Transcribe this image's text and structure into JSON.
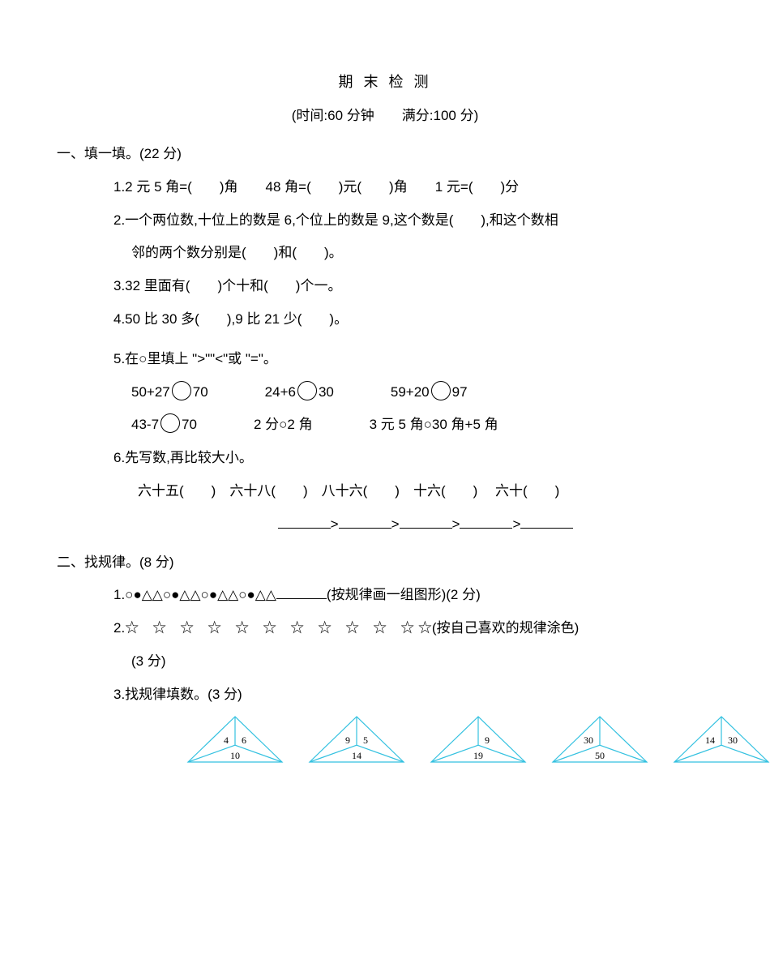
{
  "title": "期 末 检 测",
  "subtitle": "(时间:60 分钟　　满分:100 分)",
  "s1": {
    "header": "一、填一填。(22 分)",
    "q1": "1.2 元 5 角=(　　)角　　48 角=(　　)元(　　)角　　1 元=(　　)分",
    "q2a": "2.一个两位数,十位上的数是 6,个位上的数是 9,这个数是(　　),和这个数相",
    "q2b": "邻的两个数分别是(　　)和(　　)。",
    "q3": "3.32 里面有(　　)个十和(　　)个一。",
    "q4": "4.50 比 30 多(　　),9 比 21 少(　　)。",
    "q5": "5.在○里填上 \">\"\"<\"或 \"=\"。",
    "q5r1a_l": "50+27",
    "q5r1a_r": "70",
    "q5r1b_l": "24+6",
    "q5r1b_r": "30",
    "q5r1c_l": "59+20",
    "q5r1c_r": "97",
    "q5r2a_l": "43-7",
    "q5r2a_r": "70",
    "q5r2b": "2 分○2 角",
    "q5r2c": "3 元 5 角○30 角+5 角",
    "q6": "6.先写数,再比较大小。",
    "q6a": "六十五(　　)　六十八(　　)　八十六(　　)　十六(　　)　 六十(　　)"
  },
  "s2": {
    "header": "二、找规律。(8 分)",
    "q1_shapes": "1.○●△△○●△△○●△△○●△△",
    "q1_tail": "(按规律画一组图形)(2 分)",
    "q2_head": "2.",
    "q2_stars": "☆　☆　☆　☆　☆　☆　☆　☆　☆　☆　☆ ☆",
    "q2_tail": "(按自己喜欢的规律涂色)",
    "q2_pts": "(3 分)",
    "q3": "3.找规律填数。(3 分)",
    "triangles": [
      {
        "a": "4",
        "b": "6",
        "c": "10"
      },
      {
        "a": "9",
        "b": "5",
        "c": "14"
      },
      {
        "a": "",
        "b": "9",
        "c": "19"
      },
      {
        "a": "30",
        "b": "",
        "c": "50"
      },
      {
        "a": "14",
        "b": "30",
        "c": ""
      }
    ],
    "tri_style": {
      "stroke": "#33c1e0",
      "stroke_width": 1.2,
      "width": 120,
      "height": 60,
      "text_color": "#000000",
      "font_size": 12
    }
  }
}
